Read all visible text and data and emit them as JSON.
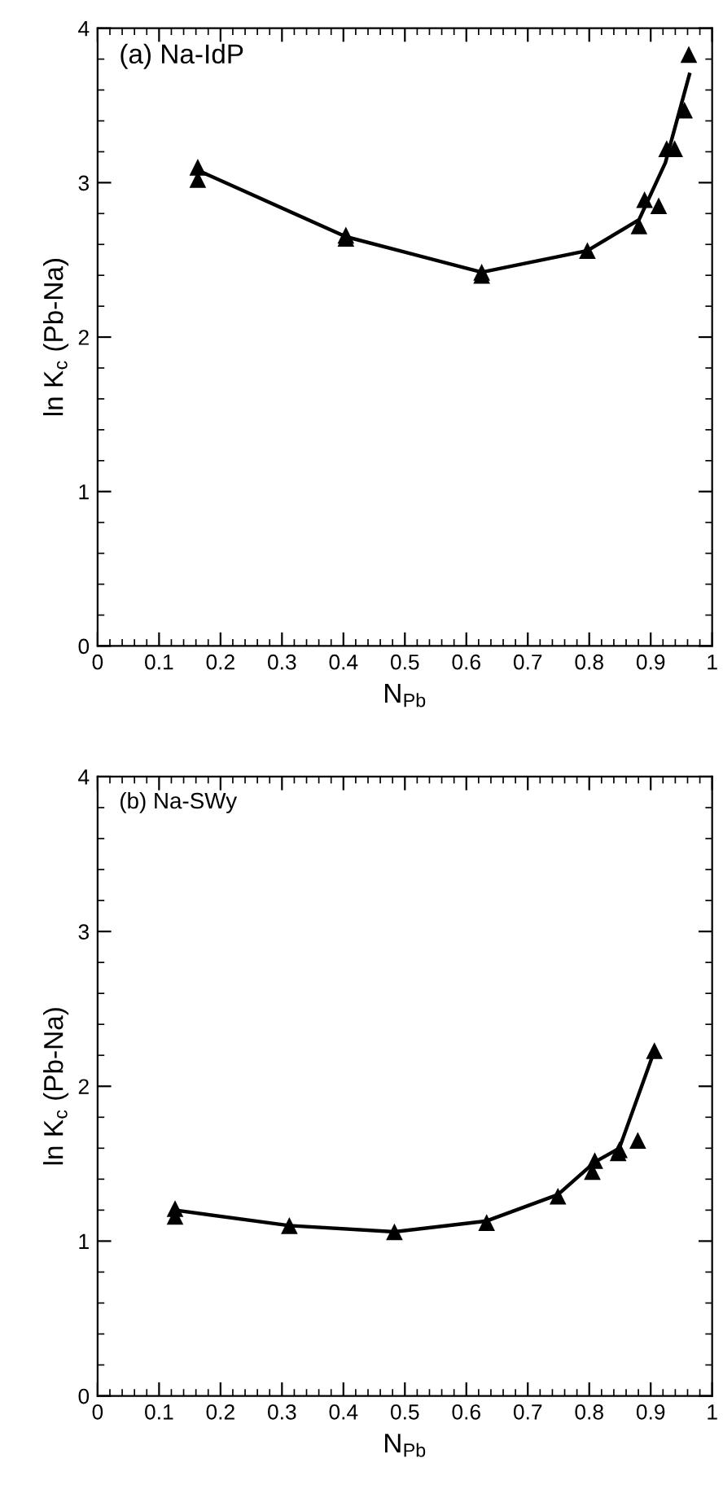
{
  "chart_data": [
    {
      "type": "scatter",
      "annotations": [
        "(a) Na-IdP"
      ],
      "xlabel": "N$_{Pb}$",
      "ylabel": "ln K$_{c}$ (Pb-Na)",
      "xlim": [
        0,
        1
      ],
      "ylim": [
        0,
        4
      ],
      "xticks": [
        0,
        0.1,
        0.2,
        0.3,
        0.4,
        0.5,
        0.6,
        0.7,
        0.8,
        0.9,
        1
      ],
      "yticks": [
        0,
        1,
        2,
        3,
        4
      ],
      "series": [
        {
          "marker": "triangle",
          "color": "#000000",
          "x": [
            0.163,
            0.163,
            0.404,
            0.404,
            0.625,
            0.625,
            0.797,
            0.881,
            0.89,
            0.913,
            0.926,
            0.939,
            0.955,
            0.962
          ],
          "values": [
            3.1,
            3.02,
            2.66,
            2.64,
            2.42,
            2.4,
            2.56,
            2.72,
            2.89,
            2.85,
            3.22,
            3.22,
            3.47,
            3.83
          ]
        },
        {
          "type": "line",
          "marker": "none",
          "line_style": "solid",
          "color": "#000000",
          "x": [
            0.163,
            0.404,
            0.625,
            0.797,
            0.881,
            0.924,
            0.963
          ],
          "values": [
            3.08,
            2.65,
            2.42,
            2.56,
            2.76,
            3.13,
            3.7
          ]
        }
      ]
    },
    {
      "type": "scatter",
      "annotations": [
        "(b) Na-SWy"
      ],
      "xlabel": "N$_{Pb}$",
      "ylabel": "ln K$_{c}$ (Pb-Na)",
      "xlim": [
        0,
        1
      ],
      "ylim": [
        0,
        4
      ],
      "xticks": [
        0,
        0.1,
        0.2,
        0.3,
        0.4,
        0.5,
        0.6,
        0.7,
        0.8,
        0.9,
        1
      ],
      "yticks": [
        0,
        1,
        2,
        3,
        4
      ],
      "series": [
        {
          "marker": "triangle",
          "color": "#000000",
          "x": [
            0.126,
            0.126,
            0.312,
            0.483,
            0.633,
            0.749,
            0.805,
            0.809,
            0.847,
            0.849,
            0.879,
            0.906
          ],
          "values": [
            1.21,
            1.16,
            1.1,
            1.06,
            1.12,
            1.29,
            1.45,
            1.52,
            1.57,
            1.59,
            1.65,
            2.23
          ]
        },
        {
          "type": "line",
          "marker": "none",
          "line_style": "solid",
          "color": "#000000",
          "x": [
            0.126,
            0.312,
            0.483,
            0.633,
            0.749,
            0.809,
            0.849,
            0.906
          ],
          "values": [
            1.2,
            1.1,
            1.06,
            1.13,
            1.3,
            1.51,
            1.6,
            2.23
          ]
        }
      ]
    }
  ]
}
